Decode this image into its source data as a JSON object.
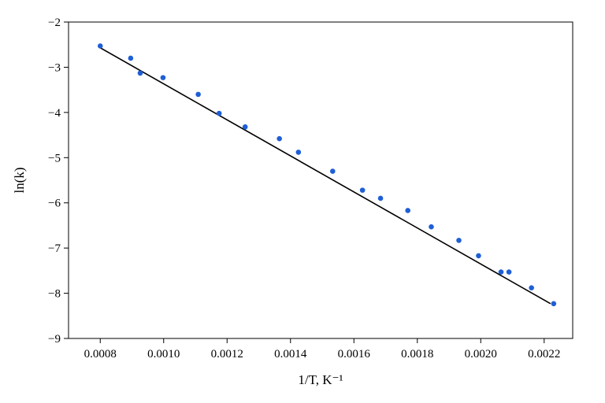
{
  "chart_data": {
    "type": "scatter",
    "x_label": "1/T, K⁻¹",
    "y_label": "ln(k)",
    "x": [
      0.0008,
      0.000896,
      0.000926,
      0.000998,
      0.001109,
      0.001175,
      0.001257,
      0.001365,
      0.001425,
      0.001533,
      0.001627,
      0.001684,
      0.00177,
      0.001844,
      0.001931,
      0.001993,
      0.002064,
      0.002089,
      0.00216,
      0.00223
    ],
    "series": [
      {
        "color": "#1f5fd6",
        "values": [
          -2.53,
          -2.8,
          -3.13,
          -3.23,
          -3.6,
          -4.02,
          -4.32,
          -4.58,
          -4.88,
          -5.3,
          -5.72,
          -5.9,
          -6.17,
          -6.53,
          -6.83,
          -7.17,
          -7.53,
          -7.53,
          -7.88,
          -8.23
        ]
      }
    ],
    "fit_line": {
      "color": "#000000",
      "x": [
        0.0008,
        0.00222
      ],
      "y": [
        -2.57,
        -8.23
      ]
    },
    "xlim": [
      0.0007,
      0.00229
    ],
    "ylim": [
      -9,
      -2
    ],
    "xticks": [
      0.0008,
      {
        "value": 0.001,
        "label": "0.0010"
      },
      0.0012,
      0.0014,
      0.0016,
      0.0018,
      {
        "value": 0.002,
        "label": "0.0020"
      },
      0.0022
    ],
    "yticks": [
      {
        "value": -2,
        "label": "−2"
      },
      {
        "value": -3,
        "label": "−3"
      },
      {
        "value": -4,
        "label": "−4"
      },
      {
        "value": -5,
        "label": "−5"
      },
      {
        "value": -6,
        "label": "−6"
      },
      {
        "value": -7,
        "label": "−7"
      },
      {
        "value": -8,
        "label": "−8"
      },
      {
        "value": -9,
        "label": "−9"
      }
    ]
  }
}
